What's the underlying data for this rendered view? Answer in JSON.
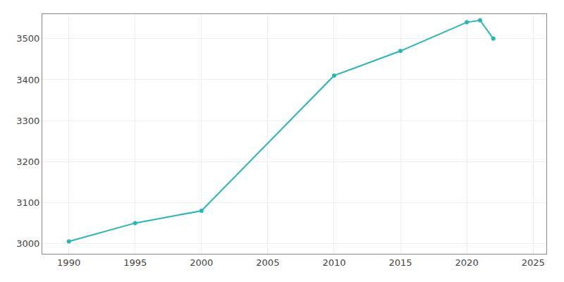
{
  "chart_data": {
    "type": "line",
    "x": [
      1990,
      1995,
      2000,
      2010,
      2015,
      2020,
      2021,
      2022
    ],
    "values": [
      3005,
      3050,
      3080,
      3410,
      3470,
      3540,
      3545,
      3500
    ],
    "color": "#2ab5b5",
    "marker": "circle",
    "xlim": [
      1988,
      2026
    ],
    "ylim": [
      2975,
      3560
    ],
    "xticks": [
      1990,
      1995,
      2000,
      2005,
      2010,
      2015,
      2020,
      2025
    ],
    "yticks": [
      3000,
      3100,
      3200,
      3300,
      3400,
      3500
    ],
    "grid": true
  }
}
